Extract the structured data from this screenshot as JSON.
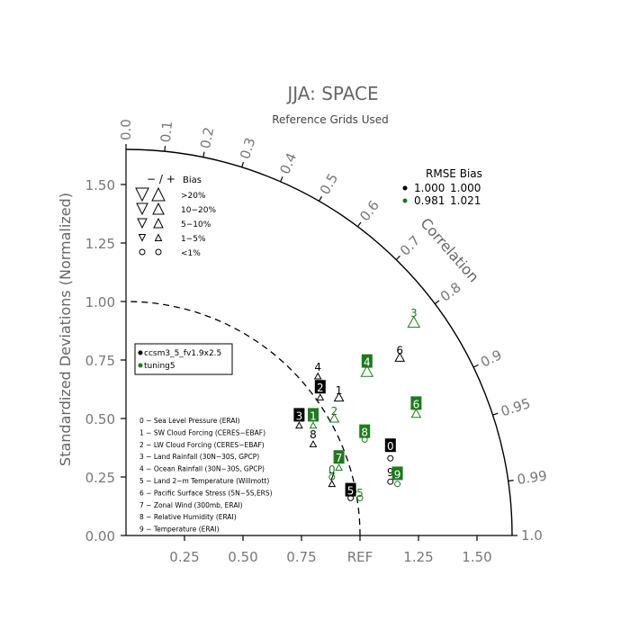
{
  "chart_data": {
    "type": "taylor-diagram",
    "title": "JJA: SPACE",
    "subtitle": "Reference Grids Used",
    "ylabel": "Standardized Deviations (Normalized)",
    "arc_label": "Correlation",
    "ref_label": "REF",
    "sd_range": [
      0,
      1.65
    ],
    "sd_ticks": [
      "0.00",
      "0.25",
      "0.50",
      "0.75",
      "1.00",
      "1.25",
      "1.50"
    ],
    "x_ticks": [
      "0.25",
      "0.50",
      "0.75",
      "1.25",
      "1.50"
    ],
    "correlation_ticks": [
      "0.0",
      "0.1",
      "0.2",
      "0.3",
      "0.4",
      "0.5",
      "0.6",
      "0.7",
      "0.8",
      "0.9",
      "0.95",
      "0.99",
      "1.0"
    ],
    "bias_legend": {
      "header_symbols": "− / +",
      "header_label": "Bias",
      "rows": [
        ">20%",
        "10−20%",
        "5−10%",
        "1−5%",
        "<1%"
      ]
    },
    "rmse_bias": {
      "header": "RMSE  Bias",
      "rows": [
        {
          "rmse": "1.000",
          "bias": "1.000",
          "color": "#000000"
        },
        {
          "rmse": "0.981",
          "bias": "1.021",
          "color": "#1e7a1e"
        }
      ]
    },
    "series": [
      {
        "name": "ccsm3_5_fv1.9x2.5",
        "color": "#000000",
        "points": [
          {
            "id": "0",
            "x": 1.13,
            "y": 0.38,
            "boxed": true,
            "marker": {
              "type": "circle",
              "x": 1.13,
              "y": 0.33
            }
          },
          {
            "id": "1",
            "x": 0.91,
            "y": 0.62,
            "boxed": false,
            "marker": {
              "type": "up",
              "size": "small",
              "x": 0.91,
              "y": 0.59
            }
          },
          {
            "id": "2",
            "x": 0.83,
            "y": 0.63,
            "boxed": true,
            "marker": {
              "type": "up",
              "size": "tiny",
              "x": 0.83,
              "y": 0.59
            }
          },
          {
            "id": "3",
            "x": 0.74,
            "y": 0.51,
            "boxed": true,
            "marker": {
              "type": "up",
              "size": "tiny",
              "x": 0.74,
              "y": 0.47
            }
          },
          {
            "id": "4",
            "x": 0.82,
            "y": 0.72,
            "boxed": false,
            "marker": {
              "type": "up",
              "size": "tiny",
              "x": 0.82,
              "y": 0.68
            }
          },
          {
            "id": "5",
            "x": 0.96,
            "y": 0.19,
            "boxed": true,
            "marker": {
              "type": "circle",
              "x": 0.96,
              "y": 0.16
            }
          },
          {
            "id": "6",
            "x": 1.17,
            "y": 0.79,
            "boxed": false,
            "marker": {
              "type": "up",
              "size": "small",
              "x": 1.17,
              "y": 0.76
            }
          },
          {
            "id": "7",
            "x": 0.88,
            "y": 0.25,
            "boxed": false,
            "marker": {
              "type": "up",
              "size": "tiny",
              "x": 0.88,
              "y": 0.22
            }
          },
          {
            "id": "8",
            "x": 0.8,
            "y": 0.43,
            "boxed": false,
            "marker": {
              "type": "up",
              "size": "tiny",
              "x": 0.8,
              "y": 0.39
            }
          },
          {
            "id": "9",
            "x": 1.13,
            "y": 0.27,
            "boxed": false,
            "marker": {
              "type": "circle",
              "x": 1.13,
              "y": 0.23
            }
          }
        ]
      },
      {
        "name": "tuning5",
        "color": "#1e7a1e",
        "points": [
          {
            "id": "0",
            "x": 0.88,
            "y": 0.28,
            "boxed": false,
            "marker": {
              "type": "circle",
              "x": 0.88,
              "y": 0.25
            }
          },
          {
            "id": "1",
            "x": 0.8,
            "y": 0.51,
            "boxed": true,
            "marker": {
              "type": "up",
              "size": "tiny",
              "x": 0.8,
              "y": 0.47
            }
          },
          {
            "id": "2",
            "x": 0.89,
            "y": 0.53,
            "boxed": false,
            "marker": {
              "type": "up",
              "size": "small",
              "x": 0.89,
              "y": 0.5
            }
          },
          {
            "id": "3",
            "x": 1.23,
            "y": 0.95,
            "boxed": false,
            "marker": {
              "type": "up",
              "size": "medium",
              "x": 1.23,
              "y": 0.91
            }
          },
          {
            "id": "4",
            "x": 1.03,
            "y": 0.74,
            "boxed": true,
            "marker": {
              "type": "up",
              "size": "medium",
              "x": 1.03,
              "y": 0.7
            }
          },
          {
            "id": "5",
            "x": 1.0,
            "y": 0.18,
            "boxed": false,
            "marker": {
              "type": "circle",
              "x": 1.0,
              "y": 0.16
            }
          },
          {
            "id": "6",
            "x": 1.24,
            "y": 0.56,
            "boxed": true,
            "marker": {
              "type": "up",
              "size": "small",
              "x": 1.24,
              "y": 0.52
            }
          },
          {
            "id": "7",
            "x": 0.91,
            "y": 0.33,
            "boxed": true,
            "marker": {
              "type": "up",
              "size": "tiny",
              "x": 0.91,
              "y": 0.29
            }
          },
          {
            "id": "8",
            "x": 1.02,
            "y": 0.44,
            "boxed": true,
            "marker": {
              "type": "circle",
              "x": 1.02,
              "y": 0.41
            }
          },
          {
            "id": "9",
            "x": 1.16,
            "y": 0.26,
            "boxed": true,
            "marker": {
              "type": "circle",
              "x": 1.16,
              "y": 0.22
            }
          }
        ]
      }
    ],
    "case_legend": [
      "0 − Sea Level Pressure (ERAI)",
      "1 − SW Cloud Forcing (CERES−EBAF)",
      "2 − LW Cloud Forcing (CERES−EBAF)",
      "3 − Land Rainfall (30N−30S, GPCP)",
      "4 − Ocean Rainfall (30N−30S, GPCP)",
      "5 − Land 2−m Temperature (Willmott)",
      "6 − Pacific Surface Stress (5N−5S,ERS)",
      "7 − Zonal Wind (300mb, ERAI)",
      "8 − Relative Humidity (ERAI)",
      "9 − Temperature (ERAI)"
    ]
  }
}
